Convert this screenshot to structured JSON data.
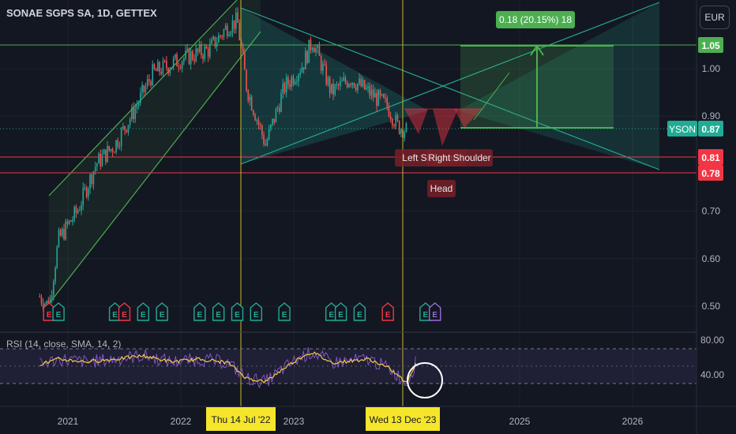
{
  "header": {
    "title": "SONAE SGPS SA, 1D, GETTEX",
    "currency": "EUR"
  },
  "rsi_label": "RSI (14, close, SMA, 14, 2)",
  "colors": {
    "bg": "#131722",
    "up": "#26a69a",
    "down": "#ef5350",
    "rsi": "#7e57c2",
    "rsi_ma": "#f7c948",
    "accent_green": "#4caf50",
    "accent_red": "#f23645",
    "vline": "#c8b82a",
    "cyan": "#22ab94"
  },
  "chart_data": {
    "type": "candlestick",
    "title": "SONAE SGPS SA, 1D, GETTEX",
    "y_axis": {
      "ticks": [
        0.5,
        0.6,
        0.7,
        0.9,
        1.0
      ],
      "labels": [
        "0.50",
        "0.60",
        "0.70",
        "0.90",
        "1.00"
      ]
    },
    "x_axis": {
      "ticks": [
        "2021",
        "2022",
        "2023",
        "2025",
        "2026"
      ]
    },
    "price_path": [
      {
        "date": "2020-10",
        "price": 0.52
      },
      {
        "date": "2020-11",
        "price": 0.5
      },
      {
        "date": "2020-12",
        "price": 0.64
      },
      {
        "date": "2021-02",
        "price": 0.7
      },
      {
        "date": "2021-04",
        "price": 0.8
      },
      {
        "date": "2021-06",
        "price": 0.84
      },
      {
        "date": "2021-08",
        "price": 0.91
      },
      {
        "date": "2021-10",
        "price": 0.99
      },
      {
        "date": "2022-01",
        "price": 1.02
      },
      {
        "date": "2022-04",
        "price": 1.04
      },
      {
        "date": "2022-06",
        "price": 1.09
      },
      {
        "date": "2022-07",
        "price": 1.1
      },
      {
        "date": "2022-08",
        "price": 0.96
      },
      {
        "date": "2022-10",
        "price": 0.84
      },
      {
        "date": "2022-12",
        "price": 0.96
      },
      {
        "date": "2023-02",
        "price": 1.01
      },
      {
        "date": "2023-03",
        "price": 1.06
      },
      {
        "date": "2023-05",
        "price": 0.95
      },
      {
        "date": "2023-07",
        "price": 0.98
      },
      {
        "date": "2023-09",
        "price": 0.95
      },
      {
        "date": "2023-11",
        "price": 0.92
      },
      {
        "date": "2023-12",
        "price": 0.88
      },
      {
        "date": "2024-01",
        "price": 0.87
      }
    ],
    "price_labels": [
      {
        "name": "level-1",
        "text": "1.05",
        "color": "#4caf50"
      },
      {
        "name": "level-2",
        "text": "0.81",
        "color": "#f23645"
      },
      {
        "name": "level-3",
        "text": "0.78",
        "color": "#f23645"
      },
      {
        "name": "current",
        "text": "0.87",
        "ticker": "YSON",
        "color": "#22ab94"
      }
    ],
    "date_labels": [
      "Thu 14 Jul '22",
      "Wed 13 Dec '23"
    ],
    "annotations": {
      "target_label": "0.18 (20.15%) 18",
      "pattern_labels": [
        "Left Shoulder",
        "Right Shoulder",
        "Head"
      ]
    },
    "earnings_markers": [
      {
        "date": "2020-11",
        "color": "red"
      },
      {
        "date": "2020-12",
        "color": "green"
      },
      {
        "date": "2021-06",
        "color": "green"
      },
      {
        "date": "2021-07",
        "color": "red"
      },
      {
        "date": "2021-09",
        "color": "green"
      },
      {
        "date": "2021-11",
        "color": "green"
      },
      {
        "date": "2022-03",
        "color": "green"
      },
      {
        "date": "2022-05",
        "color": "green"
      },
      {
        "date": "2022-07",
        "color": "green"
      },
      {
        "date": "2022-09",
        "color": "green"
      },
      {
        "date": "2022-12",
        "color": "green"
      },
      {
        "date": "2023-05",
        "color": "green"
      },
      {
        "date": "2023-06",
        "color": "green"
      },
      {
        "date": "2023-08",
        "color": "green"
      },
      {
        "date": "2023-11",
        "color": "red"
      },
      {
        "date": "2024-03",
        "color": "green"
      },
      {
        "date": "2024-04",
        "color": "purple"
      }
    ],
    "earnings_letter": "E",
    "rsi": {
      "ticks": [
        80.0,
        40.0
      ],
      "labels": [
        "80.00",
        "40.00"
      ],
      "ylim": [
        20,
        90
      ],
      "bands": [
        70,
        30
      ],
      "path": [
        {
          "date": "2020-10",
          "value": 52
        },
        {
          "date": "2020-12",
          "value": 58
        },
        {
          "date": "2021-03",
          "value": 55
        },
        {
          "date": "2021-06",
          "value": 58
        },
        {
          "date": "2021-09",
          "value": 62
        },
        {
          "date": "2021-12",
          "value": 55
        },
        {
          "date": "2022-03",
          "value": 58
        },
        {
          "date": "2022-06",
          "value": 54
        },
        {
          "date": "2022-08",
          "value": 36
        },
        {
          "date": "2022-10",
          "value": 32
        },
        {
          "date": "2022-12",
          "value": 48
        },
        {
          "date": "2023-02",
          "value": 62
        },
        {
          "date": "2023-03",
          "value": 66
        },
        {
          "date": "2023-05",
          "value": 54
        },
        {
          "date": "2023-07",
          "value": 56
        },
        {
          "date": "2023-09",
          "value": 58
        },
        {
          "date": "2023-11",
          "value": 48
        },
        {
          "date": "2023-12",
          "value": 40
        },
        {
          "date": "2024-01",
          "value": 30
        },
        {
          "date": "2024-02",
          "value": 55
        }
      ]
    }
  }
}
